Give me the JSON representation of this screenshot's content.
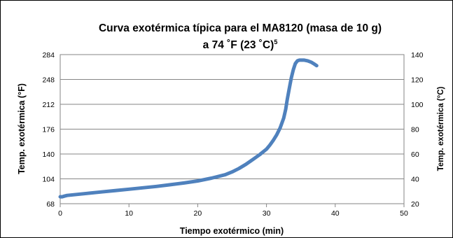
{
  "chart_data": {
    "type": "line",
    "title_line1": "Curva exotérmica típica para el MA8120 (masa de 10 g)",
    "title_line2": "a 74 ˚F (23 ˚C)",
    "title_superscript": "5",
    "xlabel": "Tiempo exotérmico (min)",
    "ylabel_left": "Temp. exotérmica (°F)",
    "ylabel_right": "Temp. exotérmica (°C)",
    "xlim": [
      0,
      50
    ],
    "ylim_left": [
      68,
      284
    ],
    "ylim_right": [
      20,
      140
    ],
    "x_ticks": [
      "0",
      "10",
      "20",
      "30",
      "40",
      "50"
    ],
    "y_ticks_left": [
      "68",
      "104",
      "140",
      "176",
      "212",
      "248",
      "284"
    ],
    "y_ticks_right": [
      "20",
      "40",
      "60",
      "80",
      "100",
      "120",
      "140"
    ],
    "grid": true,
    "legend": false,
    "line_color": "#4f81bd",
    "series": [
      {
        "x": [
          0,
          0.3,
          0.6,
          1,
          2,
          4,
          6,
          8,
          10,
          12,
          14,
          16,
          18,
          20,
          22,
          24,
          25,
          26,
          27,
          28,
          29,
          30,
          30.5,
          31,
          31.5,
          32,
          32.5,
          32.8,
          33,
          33.3,
          33.6,
          33.9,
          34.2,
          34.5,
          34.8,
          35.1,
          35.5,
          36,
          36.5,
          37,
          37.3
        ],
        "y": [
          78,
          78,
          79,
          80,
          81,
          83,
          85,
          87,
          89,
          91,
          93,
          95.5,
          98,
          101,
          105,
          110,
          114,
          119,
          125,
          132,
          139,
          147,
          153,
          160,
          168,
          178,
          192,
          205,
          218,
          234,
          250,
          262,
          271,
          275,
          276,
          276,
          276,
          275,
          273,
          270,
          268
        ]
      }
    ]
  }
}
